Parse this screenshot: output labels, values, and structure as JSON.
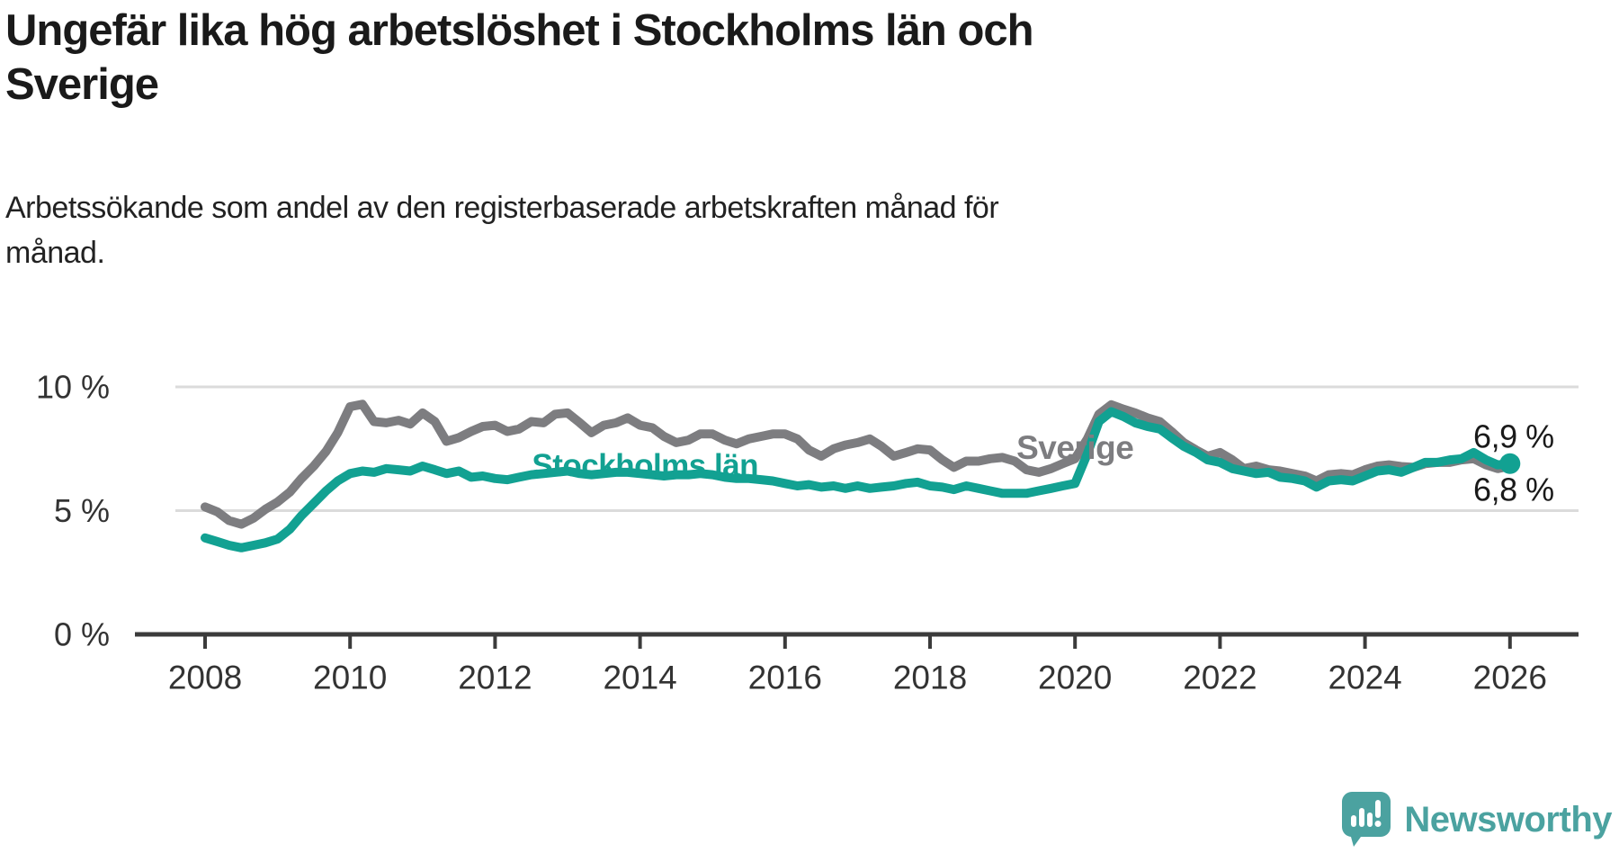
{
  "title": {
    "line1": "Ungefär lika hög arbetslöshet i Stockholms län och",
    "line2": "Sverige"
  },
  "subtitle": {
    "line1": "Arbetssökande som andel av den registerbaserade arbetskraften månad för",
    "line2": "månad."
  },
  "footer": {
    "brand": "Newsworthy"
  },
  "colors": {
    "stockholm": "#12a192",
    "sverige": "#7d7d80",
    "grid": "#dbdbdb",
    "axis": "#3b3b3b",
    "tick_text": "#333333",
    "annotation_text": "#1a1a1a",
    "logo": "#4ba2a0"
  },
  "chart_data": {
    "type": "line",
    "title": "Ungefär lika hög arbetslöshet i Stockholms län och Sverige",
    "subtitle": "Arbetssökande som andel av den registerbaserade arbetskraften månad för månad.",
    "unit": "%",
    "xlim": [
      2007.05,
      2026.95
    ],
    "ylim": [
      0,
      10.5
    ],
    "grid": "horizontal-only",
    "legend_position": "inline-labels",
    "y_ticks": [
      {
        "v": 0,
        "label": "0 %"
      },
      {
        "v": 5,
        "label": "5 %"
      },
      {
        "v": 10,
        "label": "10 %"
      }
    ],
    "x_ticks": [
      {
        "v": 2008,
        "label": "2008"
      },
      {
        "v": 2010,
        "label": "2010"
      },
      {
        "v": 2012,
        "label": "2012"
      },
      {
        "v": 2014,
        "label": "2014"
      },
      {
        "v": 2016,
        "label": "2016"
      },
      {
        "v": 2018,
        "label": "2018"
      },
      {
        "v": 2020,
        "label": "2020"
      },
      {
        "v": 2022,
        "label": "2022"
      },
      {
        "v": 2024,
        "label": "2024"
      },
      {
        "v": 2026,
        "label": "2026"
      }
    ],
    "series": [
      {
        "name": "Sverige",
        "color": "#7d7d80",
        "end_value_label": "6,8 %",
        "points": [
          [
            2008.0,
            5.15
          ],
          [
            2008.17,
            4.95
          ],
          [
            2008.33,
            4.6
          ],
          [
            2008.5,
            4.45
          ],
          [
            2008.67,
            4.7
          ],
          [
            2008.83,
            5.05
          ],
          [
            2009.0,
            5.35
          ],
          [
            2009.17,
            5.75
          ],
          [
            2009.33,
            6.3
          ],
          [
            2009.5,
            6.8
          ],
          [
            2009.67,
            7.4
          ],
          [
            2009.83,
            8.15
          ],
          [
            2010.0,
            9.2
          ],
          [
            2010.17,
            9.3
          ],
          [
            2010.33,
            8.6
          ],
          [
            2010.5,
            8.55
          ],
          [
            2010.67,
            8.65
          ],
          [
            2010.83,
            8.5
          ],
          [
            2011.0,
            8.95
          ],
          [
            2011.17,
            8.6
          ],
          [
            2011.33,
            7.8
          ],
          [
            2011.5,
            7.95
          ],
          [
            2011.67,
            8.2
          ],
          [
            2011.83,
            8.4
          ],
          [
            2012.0,
            8.45
          ],
          [
            2012.17,
            8.2
          ],
          [
            2012.33,
            8.3
          ],
          [
            2012.5,
            8.6
          ],
          [
            2012.67,
            8.55
          ],
          [
            2012.83,
            8.9
          ],
          [
            2013.0,
            8.95
          ],
          [
            2013.17,
            8.55
          ],
          [
            2013.33,
            8.15
          ],
          [
            2013.5,
            8.45
          ],
          [
            2013.67,
            8.55
          ],
          [
            2013.83,
            8.75
          ],
          [
            2014.0,
            8.45
          ],
          [
            2014.17,
            8.35
          ],
          [
            2014.33,
            8.0
          ],
          [
            2014.5,
            7.75
          ],
          [
            2014.67,
            7.85
          ],
          [
            2014.83,
            8.1
          ],
          [
            2015.0,
            8.1
          ],
          [
            2015.17,
            7.85
          ],
          [
            2015.33,
            7.7
          ],
          [
            2015.5,
            7.9
          ],
          [
            2015.67,
            8.0
          ],
          [
            2015.83,
            8.1
          ],
          [
            2016.0,
            8.1
          ],
          [
            2016.17,
            7.9
          ],
          [
            2016.33,
            7.45
          ],
          [
            2016.5,
            7.2
          ],
          [
            2016.67,
            7.5
          ],
          [
            2016.83,
            7.65
          ],
          [
            2017.0,
            7.75
          ],
          [
            2017.17,
            7.9
          ],
          [
            2017.33,
            7.6
          ],
          [
            2017.5,
            7.2
          ],
          [
            2017.67,
            7.35
          ],
          [
            2017.83,
            7.5
          ],
          [
            2018.0,
            7.45
          ],
          [
            2018.17,
            7.05
          ],
          [
            2018.33,
            6.75
          ],
          [
            2018.5,
            7.0
          ],
          [
            2018.67,
            7.0
          ],
          [
            2018.83,
            7.1
          ],
          [
            2019.0,
            7.15
          ],
          [
            2019.17,
            7.0
          ],
          [
            2019.33,
            6.65
          ],
          [
            2019.5,
            6.55
          ],
          [
            2019.67,
            6.7
          ],
          [
            2019.83,
            6.9
          ],
          [
            2020.0,
            7.1
          ],
          [
            2020.17,
            7.9
          ],
          [
            2020.33,
            8.9
          ],
          [
            2020.5,
            9.28
          ],
          [
            2020.67,
            9.1
          ],
          [
            2020.83,
            8.95
          ],
          [
            2021.0,
            8.75
          ],
          [
            2021.17,
            8.6
          ],
          [
            2021.33,
            8.2
          ],
          [
            2021.5,
            7.75
          ],
          [
            2021.67,
            7.45
          ],
          [
            2021.83,
            7.2
          ],
          [
            2022.0,
            7.35
          ],
          [
            2022.17,
            7.05
          ],
          [
            2022.33,
            6.7
          ],
          [
            2022.5,
            6.8
          ],
          [
            2022.67,
            6.65
          ],
          [
            2022.83,
            6.6
          ],
          [
            2023.0,
            6.5
          ],
          [
            2023.17,
            6.4
          ],
          [
            2023.33,
            6.2
          ],
          [
            2023.5,
            6.45
          ],
          [
            2023.67,
            6.5
          ],
          [
            2023.83,
            6.45
          ],
          [
            2024.0,
            6.65
          ],
          [
            2024.17,
            6.8
          ],
          [
            2024.33,
            6.85
          ],
          [
            2024.5,
            6.78
          ],
          [
            2024.67,
            6.75
          ],
          [
            2024.83,
            6.9
          ],
          [
            2025.0,
            6.95
          ],
          [
            2025.17,
            6.95
          ],
          [
            2025.33,
            7.05
          ],
          [
            2025.5,
            7.1
          ],
          [
            2025.67,
            6.85
          ],
          [
            2025.83,
            6.7
          ],
          [
            2026.0,
            6.8
          ]
        ]
      },
      {
        "name": "Stockholms län",
        "color": "#12a192",
        "end_value_label": "6,9 %",
        "end_dot": [
          2026.0,
          6.9
        ],
        "points": [
          [
            2008.0,
            3.9
          ],
          [
            2008.17,
            3.75
          ],
          [
            2008.33,
            3.6
          ],
          [
            2008.5,
            3.5
          ],
          [
            2008.67,
            3.6
          ],
          [
            2008.83,
            3.7
          ],
          [
            2009.0,
            3.85
          ],
          [
            2009.17,
            4.25
          ],
          [
            2009.33,
            4.8
          ],
          [
            2009.5,
            5.3
          ],
          [
            2009.67,
            5.8
          ],
          [
            2009.83,
            6.2
          ],
          [
            2010.0,
            6.5
          ],
          [
            2010.17,
            6.6
          ],
          [
            2010.33,
            6.55
          ],
          [
            2010.5,
            6.7
          ],
          [
            2010.67,
            6.65
          ],
          [
            2010.83,
            6.6
          ],
          [
            2011.0,
            6.8
          ],
          [
            2011.17,
            6.65
          ],
          [
            2011.33,
            6.5
          ],
          [
            2011.5,
            6.6
          ],
          [
            2011.67,
            6.35
          ],
          [
            2011.83,
            6.4
          ],
          [
            2012.0,
            6.3
          ],
          [
            2012.17,
            6.25
          ],
          [
            2012.33,
            6.35
          ],
          [
            2012.5,
            6.45
          ],
          [
            2012.67,
            6.5
          ],
          [
            2012.83,
            6.55
          ],
          [
            2013.0,
            6.6
          ],
          [
            2013.17,
            6.5
          ],
          [
            2013.33,
            6.45
          ],
          [
            2013.5,
            6.5
          ],
          [
            2013.67,
            6.55
          ],
          [
            2013.83,
            6.55
          ],
          [
            2014.0,
            6.5
          ],
          [
            2014.17,
            6.45
          ],
          [
            2014.33,
            6.4
          ],
          [
            2014.5,
            6.45
          ],
          [
            2014.67,
            6.45
          ],
          [
            2014.83,
            6.5
          ],
          [
            2015.0,
            6.45
          ],
          [
            2015.17,
            6.35
          ],
          [
            2015.33,
            6.3
          ],
          [
            2015.5,
            6.3
          ],
          [
            2015.67,
            6.25
          ],
          [
            2015.83,
            6.2
          ],
          [
            2016.0,
            6.1
          ],
          [
            2016.17,
            6.0
          ],
          [
            2016.33,
            6.05
          ],
          [
            2016.5,
            5.95
          ],
          [
            2016.67,
            6.0
          ],
          [
            2016.83,
            5.9
          ],
          [
            2017.0,
            6.0
          ],
          [
            2017.17,
            5.9
          ],
          [
            2017.33,
            5.95
          ],
          [
            2017.5,
            6.0
          ],
          [
            2017.67,
            6.1
          ],
          [
            2017.83,
            6.15
          ],
          [
            2018.0,
            6.0
          ],
          [
            2018.17,
            5.95
          ],
          [
            2018.33,
            5.85
          ],
          [
            2018.5,
            6.0
          ],
          [
            2018.67,
            5.9
          ],
          [
            2018.83,
            5.8
          ],
          [
            2019.0,
            5.7
          ],
          [
            2019.17,
            5.7
          ],
          [
            2019.33,
            5.7
          ],
          [
            2019.5,
            5.8
          ],
          [
            2019.67,
            5.9
          ],
          [
            2019.83,
            6.0
          ],
          [
            2020.0,
            6.1
          ],
          [
            2020.17,
            7.3
          ],
          [
            2020.33,
            8.6
          ],
          [
            2020.5,
            9.0
          ],
          [
            2020.67,
            8.8
          ],
          [
            2020.83,
            8.55
          ],
          [
            2021.0,
            8.4
          ],
          [
            2021.17,
            8.3
          ],
          [
            2021.33,
            7.95
          ],
          [
            2021.5,
            7.6
          ],
          [
            2021.67,
            7.35
          ],
          [
            2021.83,
            7.05
          ],
          [
            2022.0,
            6.95
          ],
          [
            2022.17,
            6.7
          ],
          [
            2022.33,
            6.6
          ],
          [
            2022.5,
            6.5
          ],
          [
            2022.67,
            6.55
          ],
          [
            2022.83,
            6.35
          ],
          [
            2023.0,
            6.3
          ],
          [
            2023.17,
            6.2
          ],
          [
            2023.33,
            5.95
          ],
          [
            2023.5,
            6.2
          ],
          [
            2023.67,
            6.25
          ],
          [
            2023.83,
            6.2
          ],
          [
            2024.0,
            6.4
          ],
          [
            2024.17,
            6.6
          ],
          [
            2024.33,
            6.65
          ],
          [
            2024.5,
            6.55
          ],
          [
            2024.67,
            6.75
          ],
          [
            2024.83,
            6.95
          ],
          [
            2025.0,
            6.95
          ],
          [
            2025.17,
            7.05
          ],
          [
            2025.33,
            7.1
          ],
          [
            2025.5,
            7.35
          ],
          [
            2025.67,
            7.05
          ],
          [
            2025.83,
            6.85
          ],
          [
            2026.0,
            6.9
          ]
        ]
      }
    ],
    "annotations": [
      {
        "name": "stockholm-series-label",
        "text": "Stockholms län",
        "x": 2014.07,
        "y": 6.82,
        "color": "#12a192",
        "size": 35,
        "weight": "bold",
        "anchor": "middle"
      },
      {
        "name": "sverige-series-label",
        "text": "Sverige",
        "x": 2020.0,
        "y": 7.55,
        "color": "#7d7d80",
        "size": 37,
        "weight": "bold",
        "anchor": "middle"
      },
      {
        "name": "end-value-stockholm",
        "text": "6,9 %",
        "x": 2026.05,
        "y": 8.0,
        "color": "#1a1a1a",
        "size": 36,
        "weight": "normal",
        "anchor": "middle"
      },
      {
        "name": "end-value-sverige",
        "text": "6,8 %",
        "x": 2026.05,
        "y": 5.85,
        "color": "#1a1a1a",
        "size": 36,
        "weight": "normal",
        "anchor": "middle"
      }
    ]
  }
}
